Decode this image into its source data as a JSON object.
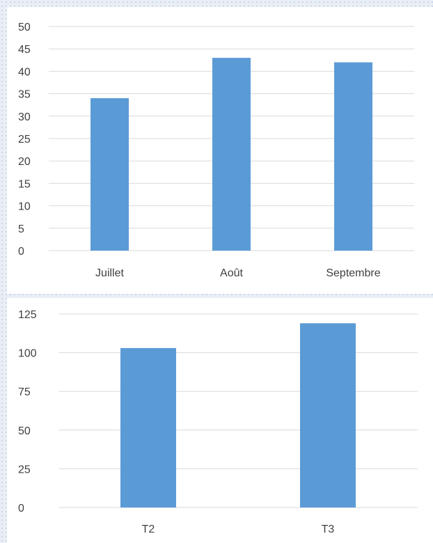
{
  "chart_data": [
    {
      "type": "bar",
      "categories": [
        "Juillet",
        "Août",
        "Septembre"
      ],
      "values": [
        34,
        43,
        42
      ],
      "title": "",
      "xlabel": "",
      "ylabel": "",
      "ylim": [
        0,
        50
      ],
      "yticks": [
        0,
        5,
        10,
        15,
        20,
        25,
        30,
        35,
        40,
        45,
        50
      ],
      "grid": true,
      "legend": "none",
      "color": "#5b9bd5"
    },
    {
      "type": "bar",
      "categories": [
        "T2",
        "T3"
      ],
      "values": [
        103,
        119
      ],
      "title": "",
      "xlabel": "",
      "ylabel": "",
      "ylim": [
        0,
        125
      ],
      "yticks": [
        0,
        25,
        50,
        75,
        100,
        125
      ],
      "grid": true,
      "legend": "none",
      "color": "#5b9bd5"
    }
  ]
}
